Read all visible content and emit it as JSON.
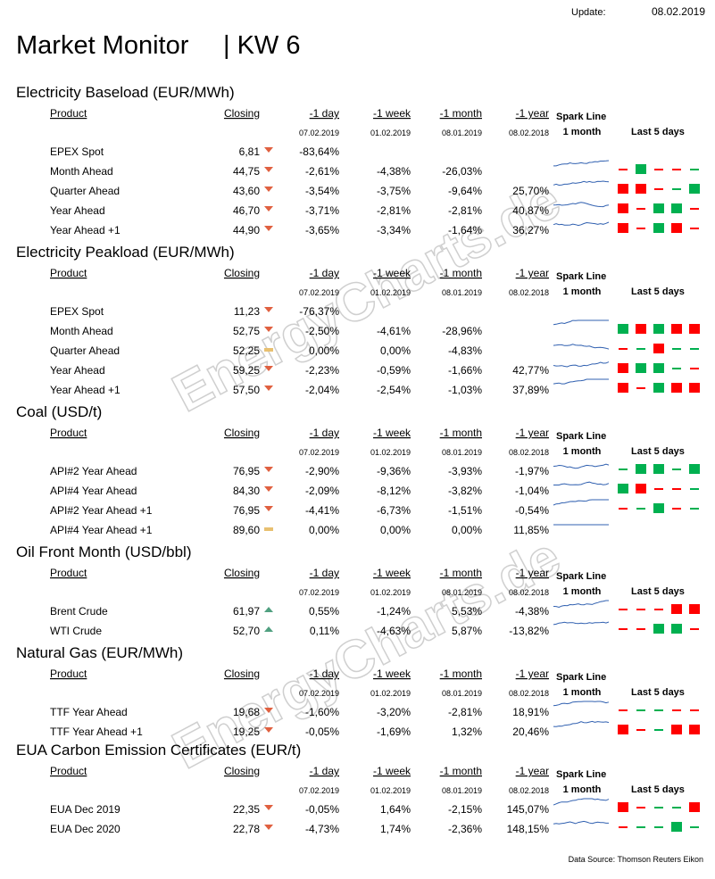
{
  "header": {
    "update_label": "Update:",
    "update_date": "08.02.2019",
    "title": "Market Monitor",
    "week": "| KW 6"
  },
  "columns": [
    "Product",
    "Closing",
    "-1 day",
    "-1 week",
    "-1 month",
    "-1 year"
  ],
  "spark_label": "Spark Line",
  "spark_sub": "1 month",
  "last5_label": "Last 5  days",
  "dates": [
    "07.02.2019",
    "01.02.2019",
    "08.01.2019",
    "08.02.2018"
  ],
  "watermark": "EnergyCharts.de",
  "sections": [
    {
      "title": "Electricity Baseload (EUR/MWh)",
      "rows": [
        {
          "cells": [
            "EPEX Spot",
            "6,81",
            "-83,64%",
            null,
            null,
            null
          ],
          "trend": "down"
        },
        {
          "cells": [
            "Month Ahead",
            "44,75",
            "-2,61%",
            "-4,38%",
            "-26,03%",
            null
          ],
          "trend": "down"
        },
        {
          "cells": [
            "Quarter Ahead",
            "43,60",
            "-3,54%",
            "-3,75%",
            "-9,64%",
            "25,70%"
          ],
          "trend": "down"
        },
        {
          "cells": [
            "Year Ahead",
            "46,70",
            "-3,71%",
            "-2,81%",
            "-2,81%",
            "40,87%"
          ],
          "trend": "down"
        },
        {
          "cells": [
            "Year  Ahead +1",
            "44,90",
            "-3,65%",
            "-3,34%",
            "-1,64%",
            "36,27%"
          ],
          "trend": "down"
        }
      ]
    },
    {
      "title": "Electricity Peakload (EUR/MWh)",
      "rows": [
        {
          "cells": [
            "EPEX Spot",
            "11,23",
            "-76,37%",
            null,
            null,
            null
          ],
          "trend": "down"
        },
        {
          "cells": [
            "Month Ahead",
            "52,75",
            "-2,50%",
            "-4,61%",
            "-28,96%",
            null
          ],
          "trend": "down"
        },
        {
          "cells": [
            "Quarter Ahead",
            "52,25",
            "0,00%",
            "0,00%",
            "-4,83%",
            null
          ],
          "trend": "flat"
        },
        {
          "cells": [
            "Year Ahead",
            "59,25",
            "-2,23%",
            "-0,59%",
            "-1,66%",
            "42,77%"
          ],
          "trend": "down"
        },
        {
          "cells": [
            "Year  Ahead +1",
            "57,50",
            "-2,04%",
            "-2,54%",
            "-1,03%",
            "37,89%"
          ],
          "trend": "down"
        }
      ]
    },
    {
      "title": "Coal (USD/t)",
      "rows": [
        {
          "cells": [
            "API#2 Year Ahead",
            "76,95",
            "-2,90%",
            "-9,36%",
            "-3,93%",
            "-1,97%"
          ],
          "trend": "down"
        },
        {
          "cells": [
            "API#4 Year Ahead",
            "84,30",
            "-2,09%",
            "-8,12%",
            "-3,82%",
            "-1,04%"
          ],
          "trend": "down"
        },
        {
          "cells": [
            "API#2 Year Ahead +1",
            "76,95",
            "-4,41%",
            "-6,73%",
            "-1,51%",
            "-0,54%"
          ],
          "trend": "down"
        },
        {
          "cells": [
            "API#4 Year Ahead +1",
            "89,60",
            "0,00%",
            "0,00%",
            "0,00%",
            "11,85%"
          ],
          "trend": "flat"
        }
      ]
    },
    {
      "title": "Oil Front Month (USD/bbl)",
      "rows": [
        {
          "cells": [
            "Brent Crude",
            "61,97",
            "0,55%",
            "-1,24%",
            "5,53%",
            "-4,38%"
          ],
          "trend": "up"
        },
        {
          "cells": [
            "WTI Crude",
            "52,70",
            "0,11%",
            "-4,63%",
            "5,87%",
            "-13,82%"
          ],
          "trend": "up"
        }
      ]
    },
    {
      "title": "Natural Gas (EUR/MWh)",
      "rows": [
        {
          "cells": [
            "TTF Year Ahead",
            "19,68",
            "-1,60%",
            "-3,20%",
            "-2,81%",
            "18,91%"
          ],
          "trend": "down"
        },
        {
          "cells": [
            "TTF Year Ahead +1",
            "19,25",
            "-0,05%",
            "-1,69%",
            "1,32%",
            "20,46%"
          ],
          "trend": "down"
        }
      ]
    },
    {
      "title": "EUA Carbon Emission Certificates (EUR/t)",
      "rows": [
        {
          "cells": [
            "EUA Dec 2019",
            "22,35",
            "-0,05%",
            "1,64%",
            "-2,15%",
            "145,07%"
          ],
          "trend": "down"
        },
        {
          "cells": [
            "EUA Dec 2020",
            "22,78",
            "-4,73%",
            "1,74%",
            "-2,36%",
            "148,15%"
          ],
          "trend": "down"
        }
      ]
    }
  ],
  "footer": "Data Source: Thomson Reuters Eikon"
}
